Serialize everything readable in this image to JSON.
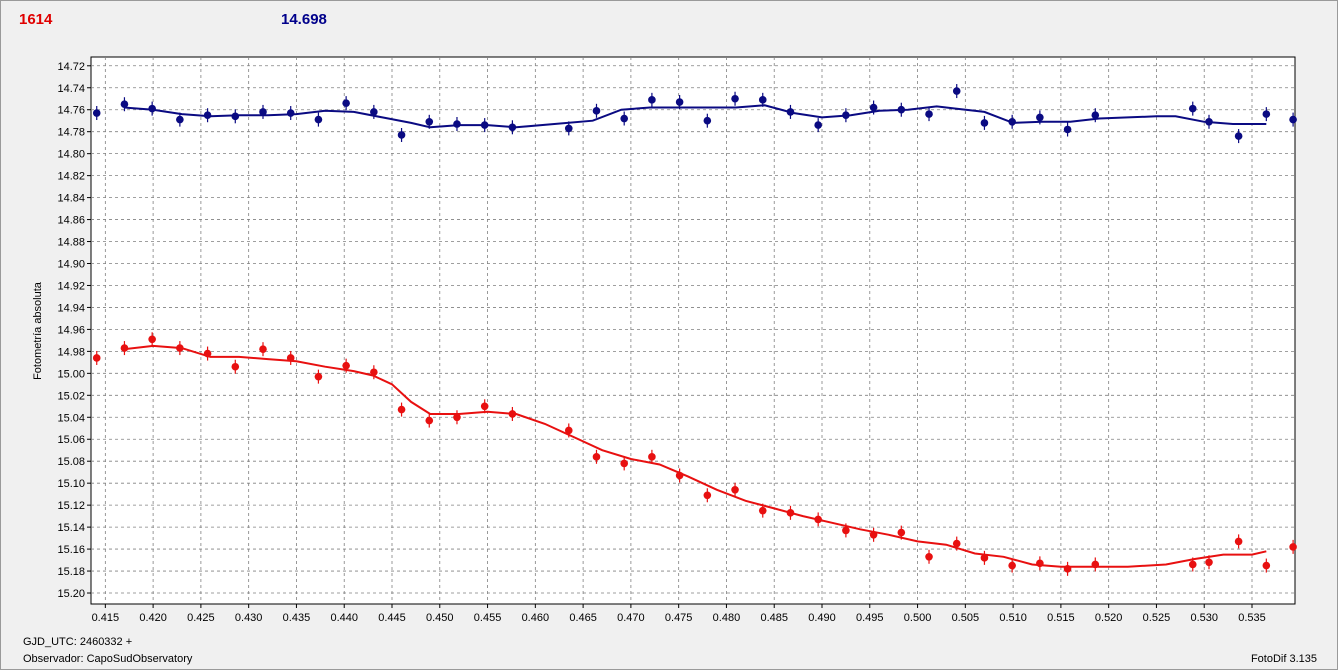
{
  "header": {
    "left_value": "1614",
    "right_value": "14.698"
  },
  "footer": {
    "gjd": "GJD_UTC: 2460332 +",
    "observer": "Observador: CapoSudObservatory",
    "version": "FotoDif 3.135"
  },
  "colors": {
    "series_target": "#e81010",
    "series_compare": "#0a0a82",
    "grid": "#808080",
    "plot_bg": "#ffffff"
  },
  "chart_data": {
    "type": "scatter",
    "ylabel": "Fotometría absoluta",
    "xlabel": "",
    "xlim": [
      0.4135,
      0.5395
    ],
    "ylim": [
      15.21,
      14.712
    ],
    "y_inverted": true,
    "grid": true,
    "x_ticks": [
      "0.415",
      "0.420",
      "0.425",
      "0.430",
      "0.435",
      "0.440",
      "0.445",
      "0.450",
      "0.455",
      "0.460",
      "0.465",
      "0.470",
      "0.475",
      "0.480",
      "0.485",
      "0.490",
      "0.495",
      "0.500",
      "0.505",
      "0.510",
      "0.515",
      "0.520",
      "0.525",
      "0.530",
      "0.535"
    ],
    "y_ticks": [
      "14.72",
      "14.74",
      "14.76",
      "14.78",
      "14.80",
      "14.82",
      "14.84",
      "14.86",
      "14.88",
      "14.90",
      "14.92",
      "14.94",
      "14.96",
      "14.98",
      "15.00",
      "15.02",
      "15.04",
      "15.06",
      "15.08",
      "15.10",
      "15.12",
      "15.14",
      "15.16",
      "15.18",
      "15.20"
    ],
    "series": [
      {
        "color": "#0a0a82",
        "points": [
          [
            0.4141,
            14.763
          ],
          [
            0.417,
            14.755
          ],
          [
            0.4199,
            14.759
          ],
          [
            0.4228,
            14.769
          ],
          [
            0.4257,
            14.765
          ],
          [
            0.4286,
            14.766
          ],
          [
            0.4315,
            14.762
          ],
          [
            0.4344,
            14.763
          ],
          [
            0.4373,
            14.769
          ],
          [
            0.4402,
            14.754
          ],
          [
            0.4431,
            14.762
          ],
          [
            0.446,
            14.783
          ],
          [
            0.4489,
            14.771
          ],
          [
            0.4518,
            14.773
          ],
          [
            0.4547,
            14.774
          ],
          [
            0.4576,
            14.776
          ],
          [
            0.4635,
            14.777
          ],
          [
            0.4664,
            14.761
          ],
          [
            0.4693,
            14.768
          ],
          [
            0.4722,
            14.751
          ],
          [
            0.4751,
            14.753
          ],
          [
            0.478,
            14.77
          ],
          [
            0.4809,
            14.75
          ],
          [
            0.4838,
            14.751
          ],
          [
            0.4867,
            14.762
          ],
          [
            0.4896,
            14.774
          ],
          [
            0.4925,
            14.765
          ],
          [
            0.4954,
            14.758
          ],
          [
            0.4983,
            14.76
          ],
          [
            0.5012,
            14.764
          ],
          [
            0.5041,
            14.743
          ],
          [
            0.507,
            14.772
          ],
          [
            0.5099,
            14.771
          ],
          [
            0.5128,
            14.767
          ],
          [
            0.5157,
            14.778
          ],
          [
            0.5186,
            14.765
          ],
          [
            0.5288,
            14.759
          ],
          [
            0.5305,
            14.771
          ],
          [
            0.5336,
            14.784
          ],
          [
            0.5365,
            14.764
          ],
          [
            0.5393,
            14.769
          ]
        ],
        "fit": [
          [
            0.417,
            14.758
          ],
          [
            0.42,
            14.76
          ],
          [
            0.423,
            14.764
          ],
          [
            0.426,
            14.766
          ],
          [
            0.429,
            14.765
          ],
          [
            0.432,
            14.765
          ],
          [
            0.435,
            14.764
          ],
          [
            0.438,
            14.761
          ],
          [
            0.441,
            14.762
          ],
          [
            0.444,
            14.767
          ],
          [
            0.447,
            14.772
          ],
          [
            0.449,
            14.776
          ],
          [
            0.452,
            14.774
          ],
          [
            0.455,
            14.774
          ],
          [
            0.458,
            14.776
          ],
          [
            0.462,
            14.773
          ],
          [
            0.466,
            14.77
          ],
          [
            0.469,
            14.76
          ],
          [
            0.472,
            14.758
          ],
          [
            0.475,
            14.758
          ],
          [
            0.478,
            14.758
          ],
          [
            0.481,
            14.758
          ],
          [
            0.484,
            14.756
          ],
          [
            0.487,
            14.763
          ],
          [
            0.49,
            14.767
          ],
          [
            0.493,
            14.765
          ],
          [
            0.496,
            14.761
          ],
          [
            0.499,
            14.76
          ],
          [
            0.502,
            14.757
          ],
          [
            0.504,
            14.759
          ],
          [
            0.507,
            14.762
          ],
          [
            0.51,
            14.772
          ],
          [
            0.513,
            14.771
          ],
          [
            0.516,
            14.771
          ],
          [
            0.519,
            14.768
          ],
          [
            0.522,
            14.767
          ],
          [
            0.525,
            14.766
          ],
          [
            0.527,
            14.766
          ],
          [
            0.53,
            14.771
          ],
          [
            0.533,
            14.773
          ],
          [
            0.5365,
            14.773
          ]
        ]
      },
      {
        "color": "#e81010",
        "points": [
          [
            0.4141,
            14.986
          ],
          [
            0.417,
            14.977
          ],
          [
            0.4199,
            14.969
          ],
          [
            0.4228,
            14.977
          ],
          [
            0.4257,
            14.982
          ],
          [
            0.4286,
            14.994
          ],
          [
            0.4315,
            14.978
          ],
          [
            0.4344,
            14.986
          ],
          [
            0.4373,
            15.003
          ],
          [
            0.4402,
            14.993
          ],
          [
            0.4431,
            14.999
          ],
          [
            0.446,
            15.033
          ],
          [
            0.4489,
            15.043
          ],
          [
            0.4518,
            15.04
          ],
          [
            0.4547,
            15.03
          ],
          [
            0.4576,
            15.037
          ],
          [
            0.4635,
            15.052
          ],
          [
            0.4664,
            15.076
          ],
          [
            0.4693,
            15.082
          ],
          [
            0.4722,
            15.076
          ],
          [
            0.4751,
            15.093
          ],
          [
            0.478,
            15.111
          ],
          [
            0.4809,
            15.106
          ],
          [
            0.4838,
            15.125
          ],
          [
            0.4867,
            15.127
          ],
          [
            0.4896,
            15.133
          ],
          [
            0.4925,
            15.143
          ],
          [
            0.4954,
            15.147
          ],
          [
            0.4983,
            15.145
          ],
          [
            0.5012,
            15.167
          ],
          [
            0.5041,
            15.155
          ],
          [
            0.507,
            15.168
          ],
          [
            0.5099,
            15.175
          ],
          [
            0.5128,
            15.173
          ],
          [
            0.5157,
            15.178
          ],
          [
            0.5186,
            15.174
          ],
          [
            0.5288,
            15.174
          ],
          [
            0.5305,
            15.172
          ],
          [
            0.5336,
            15.153
          ],
          [
            0.5365,
            15.175
          ],
          [
            0.5393,
            15.158
          ]
        ],
        "fit": [
          [
            0.417,
            14.978
          ],
          [
            0.42,
            14.975
          ],
          [
            0.423,
            14.977
          ],
          [
            0.426,
            14.985
          ],
          [
            0.429,
            14.985
          ],
          [
            0.432,
            14.987
          ],
          [
            0.435,
            14.989
          ],
          [
            0.438,
            14.994
          ],
          [
            0.441,
            14.998
          ],
          [
            0.443,
            15.002
          ],
          [
            0.445,
            15.01
          ],
          [
            0.447,
            15.026
          ],
          [
            0.449,
            15.037
          ],
          [
            0.452,
            15.037
          ],
          [
            0.455,
            15.035
          ],
          [
            0.458,
            15.037
          ],
          [
            0.461,
            15.046
          ],
          [
            0.464,
            15.058
          ],
          [
            0.467,
            15.07
          ],
          [
            0.47,
            15.078
          ],
          [
            0.473,
            15.083
          ],
          [
            0.476,
            15.094
          ],
          [
            0.479,
            15.106
          ],
          [
            0.482,
            15.116
          ],
          [
            0.485,
            15.123
          ],
          [
            0.488,
            15.13
          ],
          [
            0.491,
            15.136
          ],
          [
            0.494,
            15.142
          ],
          [
            0.497,
            15.147
          ],
          [
            0.5,
            15.153
          ],
          [
            0.503,
            15.156
          ],
          [
            0.506,
            15.164
          ],
          [
            0.509,
            15.167
          ],
          [
            0.512,
            15.174
          ],
          [
            0.515,
            15.176
          ],
          [
            0.518,
            15.176
          ],
          [
            0.522,
            15.176
          ],
          [
            0.526,
            15.174
          ],
          [
            0.529,
            15.169
          ],
          [
            0.532,
            15.165
          ],
          [
            0.535,
            15.165
          ],
          [
            0.5365,
            15.162
          ]
        ]
      }
    ]
  }
}
